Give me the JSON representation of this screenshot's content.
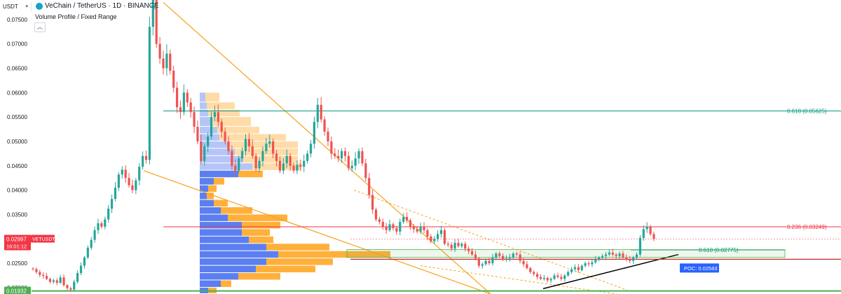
{
  "header": {
    "symbol_select": "USDT",
    "title": "VeChain / TetherUS · 1D · BINANCE",
    "indicator": "Volume Profile / Fixed Range",
    "collapse_icon": "chevron-up-icon"
  },
  "colors": {
    "up": "#26a69a",
    "down": "#ef5350",
    "trendline": "#f7a21b",
    "fib_green": "#089981",
    "fib_red": "#f23645",
    "support": "#4caf50",
    "vp_up": "#5b7ff0",
    "vp_down": "#ffa726",
    "poc_label": "#2962ff"
  },
  "chart_data": {
    "type": "candlestick",
    "ylim": [
      0.0187,
      0.079
    ],
    "yticks": [
      "0.07500",
      "0.07000",
      "0.06500",
      "0.06000",
      "0.05500",
      "0.05000",
      "0.04500",
      "0.04000",
      "0.03500",
      "0.03000",
      "0.02500",
      "0.02000"
    ],
    "price_label": "0.02997",
    "price_symbol": "VETUSDT",
    "countdown": "16:01:12",
    "support_label": "0.01932",
    "levels": [
      {
        "price": 0.05625,
        "label": "0.618 (0.05625)",
        "color": "green"
      },
      {
        "price": 0.03249,
        "label": "0.236 (0.03249)",
        "color": "red"
      },
      {
        "price": 0.02775,
        "label": "0.618 (0.02775)",
        "color": "green"
      },
      {
        "price": 0.02583,
        "label": "POC: 0.02583",
        "color": "blue"
      },
      {
        "price": 0.01932,
        "label": "0.01932",
        "color": "support"
      }
    ],
    "closes": [
      0.0238,
      0.0232,
      0.0226,
      0.0224,
      0.0218,
      0.0212,
      0.0215,
      0.021,
      0.0221,
      0.0205,
      0.0199,
      0.0196,
      0.0212,
      0.023,
      0.0245,
      0.0262,
      0.0282,
      0.0298,
      0.0318,
      0.0332,
      0.0325,
      0.034,
      0.0362,
      0.0382,
      0.0405,
      0.0432,
      0.0442,
      0.0425,
      0.041,
      0.04,
      0.042,
      0.0448,
      0.047,
      0.0462,
      0.0735,
      0.079,
      0.07,
      0.067,
      0.065,
      0.068,
      0.0645,
      0.061,
      0.057,
      0.056,
      0.06,
      0.058,
      0.056,
      0.053,
      0.05,
      0.046,
      0.049,
      0.051,
      0.055,
      0.056,
      0.054,
      0.052,
      0.05,
      0.048,
      0.045,
      0.044,
      0.0465,
      0.048,
      0.0505,
      0.049,
      0.047,
      0.0445,
      0.046,
      0.048,
      0.0495,
      0.05,
      0.0475,
      0.046,
      0.044,
      0.0455,
      0.047,
      0.045,
      0.044,
      0.0452,
      0.0448,
      0.046,
      0.0475,
      0.0495,
      0.054,
      0.0575,
      0.0545,
      0.052,
      0.05,
      0.0475,
      0.047,
      0.0465,
      0.048,
      0.047,
      0.0445,
      0.045,
      0.0465,
      0.048,
      0.0455,
      0.0425,
      0.039,
      0.036,
      0.034,
      0.0335,
      0.0325,
      0.0318,
      0.033,
      0.0322,
      0.0315,
      0.0335,
      0.0345,
      0.0338,
      0.0325,
      0.032,
      0.0315,
      0.0325,
      0.0318,
      0.0305,
      0.0295,
      0.03,
      0.031,
      0.0318,
      0.029,
      0.0288,
      0.028,
      0.0292,
      0.0285,
      0.029,
      0.028,
      0.0275,
      0.0268,
      0.026,
      0.0245,
      0.0248,
      0.0255,
      0.025,
      0.0262,
      0.027,
      0.0265,
      0.0258,
      0.026,
      0.0262,
      0.027,
      0.0268,
      0.0255,
      0.0248,
      0.024,
      0.0232,
      0.0228,
      0.0222,
      0.0218,
      0.022,
      0.0215,
      0.0218,
      0.0225,
      0.0222,
      0.0218,
      0.0225,
      0.0232,
      0.0238,
      0.0242,
      0.0236,
      0.0245,
      0.025,
      0.0248,
      0.0252,
      0.0258,
      0.0262,
      0.0265,
      0.0268,
      0.0272,
      0.0268,
      0.0265,
      0.027,
      0.0262,
      0.0258,
      0.0255,
      0.0262,
      0.0268,
      0.0302,
      0.032,
      0.0325,
      0.031,
      0.03
    ]
  }
}
